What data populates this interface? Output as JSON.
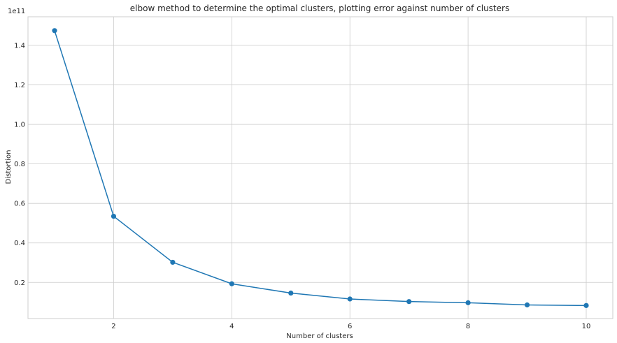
{
  "chart_data": {
    "type": "line",
    "title": "elbow method to determine the optimal clusters, plotting error against number of clusters",
    "xlabel": "Number of clusters",
    "ylabel": "Distortion",
    "y_offset_label": "1e11",
    "x": [
      1,
      2,
      3,
      4,
      5,
      6,
      7,
      8,
      9,
      10
    ],
    "series": [
      {
        "values": [
          1.475,
          0.535,
          0.302,
          0.193,
          0.146,
          0.116,
          0.103,
          0.097,
          0.086,
          0.083
        ]
      }
    ],
    "xlim": [
      0.55,
      10.45
    ],
    "ylim": [
      0.017,
      1.545
    ],
    "xticks": [
      2,
      4,
      6,
      8,
      10
    ],
    "xtick_labels": [
      "2",
      "4",
      "6",
      "8",
      "10"
    ],
    "yticks": [
      0.2,
      0.4,
      0.6,
      0.8,
      1.0,
      1.2,
      1.4
    ],
    "ytick_labels": [
      "0.2",
      "0.4",
      "0.6",
      "0.8",
      "1.0",
      "1.2",
      "1.4"
    ],
    "grid": true,
    "legend": "none",
    "colors": {
      "line": "#1f77b4",
      "grid": "#cccccc",
      "text": "#262626"
    }
  }
}
